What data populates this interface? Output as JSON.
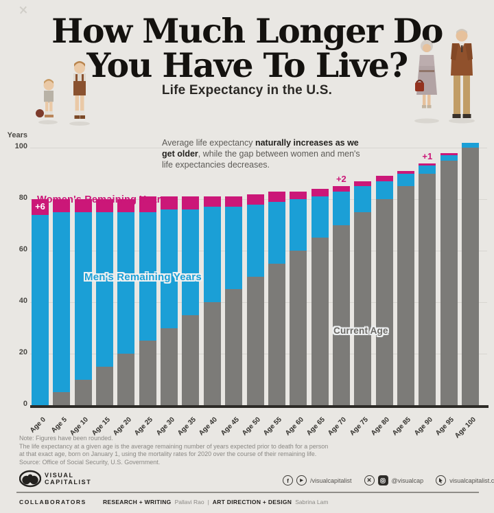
{
  "header": {
    "title_line1": "How Much Longer Do",
    "title_line2": "You Have To Live?",
    "subtitle": "Life Expectancy in the U.S."
  },
  "annotation": {
    "pre": "Average life expectancy ",
    "bold": "naturally increases as we get older",
    "post": ", while the gap between women and men's life expectancies decreases."
  },
  "chart_data": {
    "type": "bar",
    "stacked": true,
    "title": "Life Expectancy in the U.S.",
    "ylabel": "Years",
    "ylim": [
      0,
      100
    ],
    "yticks": [
      0,
      20,
      40,
      60,
      80,
      100
    ],
    "grid": true,
    "legend_position": "inline-labels",
    "categories": [
      "Age 0",
      "Age 5",
      "Age 10",
      "Age 15",
      "Age 20",
      "Age 25",
      "Age 30",
      "Age 35",
      "Age 40",
      "Age 45",
      "Age 50",
      "Age 55",
      "Age 60",
      "Age 65",
      "Age 70",
      "Age 75",
      "Age 80",
      "Age 85",
      "Age 90",
      "Age 95",
      "Age 100"
    ],
    "series": [
      {
        "key": "current",
        "name": "Current Age",
        "color": "#7c7b78",
        "values": [
          0,
          5,
          10,
          15,
          20,
          25,
          30,
          35,
          40,
          45,
          50,
          55,
          60,
          65,
          70,
          75,
          80,
          85,
          90,
          95,
          100
        ]
      },
      {
        "key": "men",
        "name": "Men's Remaining Years",
        "color": "#1b9fd6",
        "values": [
          74,
          70,
          65,
          60,
          55,
          50,
          46,
          41,
          37,
          32,
          28,
          24,
          20,
          16,
          13,
          10,
          7,
          5,
          3,
          2,
          2
        ]
      },
      {
        "key": "women",
        "name": "Women's Remaining Years",
        "color": "#cb1778",
        "values": [
          6,
          5,
          5,
          5,
          5,
          6,
          5,
          5,
          4,
          4,
          4,
          4,
          3,
          3,
          2,
          2,
          2,
          1,
          1,
          1,
          0
        ]
      }
    ],
    "women_total_remaining_years": [
      80,
      75,
      70,
      65,
      60,
      56,
      51,
      46,
      41,
      36,
      32,
      28,
      23,
      19,
      15,
      12,
      9,
      6,
      4,
      3,
      2
    ],
    "bar_labels": [
      {
        "category": "Age 0",
        "text": "+6",
        "placement": "inside-top"
      },
      {
        "category": "Age 70",
        "text": "+2",
        "placement": "above"
      },
      {
        "category": "Age 90",
        "text": "+1",
        "placement": "above"
      }
    ]
  },
  "notes": {
    "line1": "Note: Figures have been rounded.",
    "line2": "The life expectancy at a given age is the average remaining number of years expected prior to death for a person",
    "line3": "at that exact age, born on January 1, using the mortality rates for 2020 over the course of their remaining life.",
    "line4": "Source: Office of Social Security, U.S. Government."
  },
  "footer": {
    "logo_line1": "VISUAL",
    "logo_line2": "CAPITALIST",
    "social_handle_fb_yt": "/visualcapitalist",
    "social_handle_x_ig": "@visualcap",
    "website": "visualcapitalist.com",
    "icon_fb": "f",
    "icon_play": "▶",
    "icon_x": "✕"
  },
  "collaborators": {
    "label": "COLLABORATORS",
    "research_label": "RESEARCH + WRITING",
    "research_name": "Pallavi Rao",
    "separator": "|",
    "design_label": "ART DIRECTION + DESIGN",
    "design_name": "Sabrina Lam"
  }
}
